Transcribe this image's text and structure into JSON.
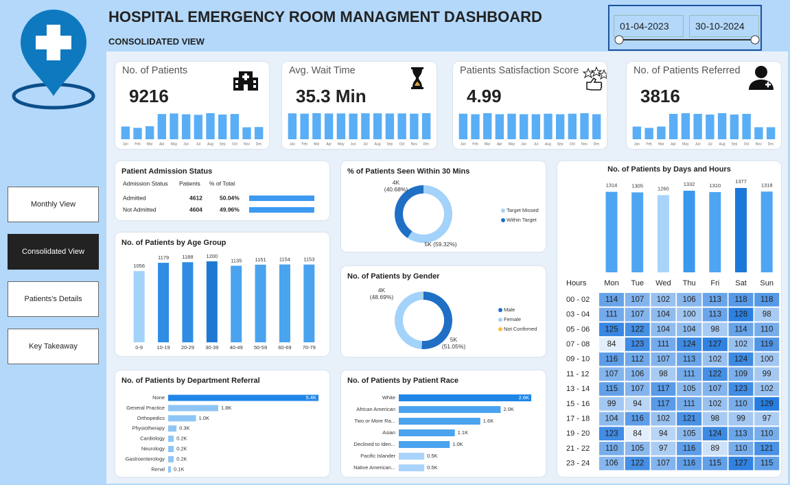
{
  "header": {
    "title": "HOSPITAL EMERGENCY ROOM MANAGMENT DASHBOARD",
    "subtitle": "CONSOLIDATED VIEW"
  },
  "slicer": {
    "start": "01-04-2023",
    "end": "30-10-2024"
  },
  "nav": [
    {
      "label": "Monthly View",
      "active": false
    },
    {
      "label": "Consolidated View",
      "active": true
    },
    {
      "label": "Patients's Details",
      "active": false
    },
    {
      "label": "Key Takeaway",
      "active": false
    }
  ],
  "chart_data": [
    {
      "type": "kpi",
      "title": "No. of Patients",
      "kpi": 9216,
      "categories": [
        "Jan",
        "Feb",
        "Mar",
        "Apr",
        "May",
        "Jun",
        "Jul",
        "Aug",
        "Sep",
        "Oct",
        "Nov",
        "Dec"
      ],
      "values": [
        470,
        420,
        480,
        930,
        950,
        920,
        900,
        960,
        910,
        930,
        440,
        450
      ],
      "color": "#5aaef5"
    },
    {
      "type": "kpi",
      "title": "Avg. Wait Time",
      "kpi": "35.3 Min",
      "categories": [
        "Jan",
        "Feb",
        "Mar",
        "Apr",
        "May",
        "Jun",
        "Jul",
        "Aug",
        "Sep",
        "Oct",
        "Nov",
        "Dec"
      ],
      "values": [
        35.4,
        35.0,
        35.6,
        35.2,
        35.3,
        35.1,
        35.5,
        35.4,
        35.2,
        35.3,
        35.0,
        35.6
      ],
      "color": "#5aaef5"
    },
    {
      "type": "kpi",
      "title": "Patients Satisfaction Score",
      "kpi": 4.99,
      "categories": [
        "Jan",
        "Feb",
        "Mar",
        "Apr",
        "May",
        "Jun",
        "Jul",
        "Aug",
        "Sep",
        "Oct",
        "Nov",
        "Dec"
      ],
      "values": [
        5.0,
        4.9,
        5.1,
        4.9,
        5.0,
        4.9,
        4.9,
        5.0,
        4.9,
        5.0,
        5.1,
        4.9
      ],
      "color": "#5aaef5"
    },
    {
      "type": "kpi",
      "title": "No. of Patients Referred",
      "kpi": 3816,
      "categories": [
        "Jan",
        "Feb",
        "Mar",
        "Apr",
        "May",
        "Jun",
        "Jul",
        "Aug",
        "Sep",
        "Oct",
        "Nov",
        "Dec"
      ],
      "values": [
        190,
        170,
        190,
        380,
        390,
        380,
        370,
        390,
        370,
        380,
        180,
        180
      ],
      "color": "#5aaef5"
    },
    {
      "type": "table_bar",
      "title": "Patient Admission Status",
      "columns": [
        "Admission Status",
        "Patients",
        "% of Total"
      ],
      "categories": [
        "Admitted",
        "Not Admitted"
      ],
      "values": [
        4612,
        4604
      ],
      "percent_labels": [
        "50.04%",
        "49.96%"
      ],
      "color": "#3d9af0"
    },
    {
      "type": "donut",
      "title": "% of Patients Seen Within 30 Mins",
      "categories": [
        "Target Missed",
        "Within Target"
      ],
      "values": [
        59.32,
        40.68
      ],
      "value_labels": [
        "5K (59.32%)",
        "4K (40.68%)"
      ],
      "colors": [
        "#a3d2fa",
        "#1f6fc5"
      ]
    },
    {
      "type": "bar",
      "title": "No. of Patients by Age Group",
      "categories": [
        "0-9",
        "10-19",
        "20-29",
        "30-39",
        "40-49",
        "50-59",
        "60-69",
        "70-79"
      ],
      "values": [
        1056,
        1179,
        1188,
        1200,
        1135,
        1151,
        1154,
        1153
      ],
      "colors": [
        "#a3d2fa",
        "#2f8de4",
        "#2f8de4",
        "#1f78d1",
        "#4aa3ef",
        "#4aa3ef",
        "#4aa3ef",
        "#4aa3ef"
      ]
    },
    {
      "type": "donut",
      "title": "No. of Patients by Gender",
      "categories": [
        "Male",
        "Female",
        "Not Confirmed"
      ],
      "values": [
        51.05,
        48.69,
        0.26
      ],
      "value_labels": [
        "5K (51.05%)",
        "4K (48.69%)",
        null
      ],
      "colors": [
        "#1f6fc5",
        "#a3d2fa",
        "#f5c242"
      ]
    },
    {
      "type": "hbar",
      "title": "No. of Patients by Department Referral",
      "categories": [
        "None",
        "General Practice",
        "Orthopedics",
        "Physiotherapy",
        "Cardiology",
        "Neurology",
        "Gastroenterology",
        "Renal"
      ],
      "values": [
        5400,
        1800,
        1000,
        300,
        200,
        200,
        200,
        100
      ],
      "value_labels": [
        "5.4K",
        "1.8K",
        "1.0K",
        "0.3K",
        "0.2K",
        "0.2K",
        "0.2K",
        "0.1K"
      ],
      "colors": [
        "#1f86e8",
        "#8ec5f5",
        "#8ec5f5",
        "#8ec5f5",
        "#8ec5f5",
        "#8ec5f5",
        "#8ec5f5",
        "#8ec5f5"
      ]
    },
    {
      "type": "hbar",
      "title": "No. of Patients by Patient Race",
      "categories": [
        "White",
        "African American",
        "Two or More Ra...",
        "Asian",
        "Declined to Iden...",
        "Pacific Islander",
        "Native American..."
      ],
      "values": [
        2600,
        2000,
        1600,
        1100,
        1000,
        500,
        500
      ],
      "value_labels": [
        "2.6K",
        "2.0K",
        "1.6K",
        "1.1K",
        "1.0K",
        "0.5K",
        "0.5K"
      ],
      "colors": [
        "#1f86e8",
        "#4aa3ef",
        "#4aa3ef",
        "#4aa3ef",
        "#4aa3ef",
        "#a9d3fa",
        "#a9d3fa"
      ]
    },
    {
      "type": "bar_heatmap",
      "title": "No. of Patients by Days and Hours",
      "categories": [
        "Mon",
        "Tue",
        "Wed",
        "Thu",
        "Fri",
        "Sat",
        "Sun"
      ],
      "values": [
        1314,
        1305,
        1260,
        1332,
        1310,
        1377,
        1318
      ],
      "colors": [
        "#4ea6f2",
        "#4ea6f2",
        "#a8d3fa",
        "#3a98ee",
        "#4ea6f2",
        "#1d77d8",
        "#4ea6f2"
      ],
      "row_header": "Hours",
      "rows": [
        "00 - 02",
        "03 - 04",
        "05 - 06",
        "07 - 08",
        "09 - 10",
        "11 - 12",
        "13 - 14",
        "15 - 16",
        "17 - 18",
        "19 - 20",
        "21 - 22",
        "23 - 24"
      ],
      "matrix": [
        [
          114,
          107,
          102,
          106,
          113,
          118,
          118
        ],
        [
          111,
          107,
          104,
          100,
          113,
          128,
          98
        ],
        [
          125,
          122,
          104,
          104,
          98,
          114,
          110
        ],
        [
          84,
          123,
          111,
          124,
          127,
          102,
          119
        ],
        [
          116,
          112,
          107,
          113,
          102,
          124,
          100
        ],
        [
          107,
          106,
          98,
          111,
          122,
          109,
          99
        ],
        [
          115,
          107,
          117,
          105,
          107,
          123,
          102
        ],
        [
          99,
          94,
          117,
          111,
          102,
          110,
          129
        ],
        [
          104,
          116,
          102,
          121,
          98,
          99,
          97
        ],
        [
          123,
          84,
          94,
          105,
          124,
          113,
          110
        ],
        [
          110,
          105,
          97,
          116,
          89,
          110,
          121
        ],
        [
          106,
          122,
          107,
          116,
          115,
          127,
          115
        ]
      ]
    }
  ]
}
